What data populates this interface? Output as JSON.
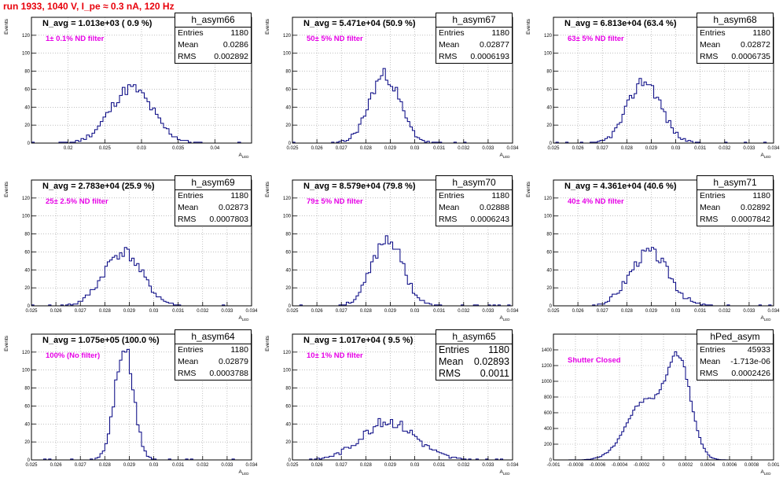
{
  "page_title": "run 1933,  1040 V, I_pe ≈ 0.3 nA, 120 Hz",
  "colors": {
    "histogram": "#000080",
    "title": "#e8000b",
    "annotation": "#e600e6",
    "grid": "#9a9a9a"
  },
  "chart_data": [
    {
      "type": "bar",
      "name": "h_asym66",
      "avg_label": "N_avg = 1.013e+03 ( 0.9 %)",
      "filter_label": "1± 0.1% ND filter",
      "stats": {
        "entries_label": "Entries",
        "entries": "1180",
        "mean_label": "Mean",
        "mean": "0.0286",
        "rms_label": "RMS",
        "rms": "0.002892"
      },
      "xlabel": "A_{LED}",
      "ylabel": "Events",
      "xlim": [
        0.015,
        0.045
      ],
      "ylim": [
        0,
        140
      ],
      "xticks": [
        0.02,
        0.025,
        0.03,
        0.035,
        0.04
      ],
      "xtick_labels": [
        "0.02",
        "0.025",
        "0.03",
        "0.035",
        "0.04"
      ],
      "yticks": [
        0,
        20,
        40,
        60,
        80,
        100,
        120
      ],
      "grid": true,
      "hist": {
        "mean": 0.0286,
        "rms": 0.002892,
        "entries": 1180,
        "bins": 80,
        "seed": 11
      }
    },
    {
      "type": "bar",
      "name": "h_asym67",
      "avg_label": "N_avg = 5.471e+04 (50.9 %)",
      "filter_label": "50± 5% ND filter",
      "stats": {
        "entries_label": "Entries",
        "entries": "1180",
        "mean_label": "Mean",
        "mean": "0.02877",
        "rms_label": "RMS",
        "rms": "0.0006193"
      },
      "xlabel": "A_{LED}",
      "ylabel": "Events",
      "xlim": [
        0.025,
        0.034
      ],
      "ylim": [
        0,
        140
      ],
      "xticks": [
        0.025,
        0.026,
        0.027,
        0.028,
        0.029,
        0.03,
        0.031,
        0.032,
        0.033,
        0.034
      ],
      "xtick_labels": [
        "0.025",
        "0.026",
        "0.027",
        "0.028",
        "0.029",
        "0.03",
        "0.031",
        "0.032",
        "0.033",
        "0.034"
      ],
      "yticks": [
        0,
        20,
        40,
        60,
        80,
        100,
        120
      ],
      "grid": true,
      "hist": {
        "mean": 0.02877,
        "rms": 0.0006193,
        "entries": 1180,
        "bins": 90,
        "seed": 23
      }
    },
    {
      "type": "bar",
      "name": "h_asym68",
      "avg_label": "N_avg = 6.813e+04 (63.4 %)",
      "filter_label": "63± 5% ND filter",
      "stats": {
        "entries_label": "Entries",
        "entries": "1180",
        "mean_label": "Mean",
        "mean": "0.02872",
        "rms_label": "RMS",
        "rms": "0.0006735"
      },
      "xlabel": "A_{LED}",
      "ylabel": "Events",
      "xlim": [
        0.025,
        0.034
      ],
      "ylim": [
        0,
        140
      ],
      "xticks": [
        0.025,
        0.026,
        0.027,
        0.028,
        0.029,
        0.03,
        0.031,
        0.032,
        0.033,
        0.034
      ],
      "xtick_labels": [
        "0.025",
        "0.026",
        "0.027",
        "0.028",
        "0.029",
        "0.03",
        "0.031",
        "0.032",
        "0.033",
        "0.034"
      ],
      "yticks": [
        0,
        20,
        40,
        60,
        80,
        100,
        120
      ],
      "grid": true,
      "hist": {
        "mean": 0.02872,
        "rms": 0.0006735,
        "entries": 1180,
        "bins": 90,
        "seed": 37
      }
    },
    {
      "type": "bar",
      "name": "h_asym69",
      "avg_label": "N_avg = 2.783e+04 (25.9 %)",
      "filter_label": "25± 2.5% ND filter",
      "stats": {
        "entries_label": "Entries",
        "entries": "1180",
        "mean_label": "Mean",
        "mean": "0.02873",
        "rms_label": "RMS",
        "rms": "0.0007803"
      },
      "xlabel": "A_{LED}",
      "ylabel": "Events",
      "xlim": [
        0.025,
        0.034
      ],
      "ylim": [
        0,
        140
      ],
      "xticks": [
        0.025,
        0.026,
        0.027,
        0.028,
        0.029,
        0.03,
        0.031,
        0.032,
        0.033,
        0.034
      ],
      "xtick_labels": [
        "0.025",
        "0.026",
        "0.027",
        "0.028",
        "0.029",
        "0.03",
        "0.031",
        "0.032",
        "0.033",
        "0.034"
      ],
      "yticks": [
        0,
        20,
        40,
        60,
        80,
        100,
        120
      ],
      "grid": true,
      "hist": {
        "mean": 0.02873,
        "rms": 0.0007803,
        "entries": 1180,
        "bins": 90,
        "seed": 41
      }
    },
    {
      "type": "bar",
      "name": "h_asym70",
      "avg_label": "N_avg = 8.579e+04 (79.8 %)",
      "filter_label": "79± 5% ND filter",
      "stats": {
        "entries_label": "Entries",
        "entries": "1180",
        "mean_label": "Mean",
        "mean": "0.02888",
        "rms_label": "RMS",
        "rms": "0.0006243"
      },
      "xlabel": "A_{LED}",
      "ylabel": "Events",
      "xlim": [
        0.025,
        0.034
      ],
      "ylim": [
        0,
        140
      ],
      "xticks": [
        0.025,
        0.026,
        0.027,
        0.028,
        0.029,
        0.03,
        0.031,
        0.032,
        0.033,
        0.034
      ],
      "xtick_labels": [
        "0.025",
        "0.026",
        "0.027",
        "0.028",
        "0.029",
        "0.03",
        "0.031",
        "0.032",
        "0.033",
        "0.034"
      ],
      "yticks": [
        0,
        20,
        40,
        60,
        80,
        100,
        120
      ],
      "grid": true,
      "hist": {
        "mean": 0.02888,
        "rms": 0.0006243,
        "entries": 1180,
        "bins": 90,
        "seed": 53
      }
    },
    {
      "type": "bar",
      "name": "h_asym71",
      "avg_label": "N_avg = 4.361e+04 (40.6 %)",
      "filter_label": "40± 4% ND filter",
      "stats": {
        "entries_label": "Entries",
        "entries": "1180",
        "mean_label": "Mean",
        "mean": "0.02892",
        "rms_label": "RMS",
        "rms": "0.0007842"
      },
      "xlabel": "A_{LED}",
      "ylabel": "Events",
      "xlim": [
        0.025,
        0.034
      ],
      "ylim": [
        0,
        140
      ],
      "xticks": [
        0.025,
        0.026,
        0.027,
        0.028,
        0.029,
        0.03,
        0.031,
        0.032,
        0.033,
        0.034
      ],
      "xtick_labels": [
        "0.025",
        "0.026",
        "0.027",
        "0.028",
        "0.029",
        "0.03",
        "0.031",
        "0.032",
        "0.033",
        "0.034"
      ],
      "yticks": [
        0,
        20,
        40,
        60,
        80,
        100,
        120
      ],
      "grid": true,
      "hist": {
        "mean": 0.02892,
        "rms": 0.0007842,
        "entries": 1180,
        "bins": 90,
        "seed": 67
      }
    },
    {
      "type": "bar",
      "name": "h_asym64",
      "avg_label": "N_avg = 1.075e+05 (100.0 %)",
      "filter_label": "100% (No filter)",
      "stats": {
        "entries_label": "Entries",
        "entries": "1180",
        "mean_label": "Mean",
        "mean": "0.02879",
        "rms_label": "RMS",
        "rms": "0.0003788"
      },
      "xlabel": "A_{LED}",
      "ylabel": "Events",
      "xlim": [
        0.025,
        0.034
      ],
      "ylim": [
        0,
        140
      ],
      "xticks": [
        0.025,
        0.026,
        0.027,
        0.028,
        0.029,
        0.03,
        0.031,
        0.032,
        0.033,
        0.034
      ],
      "xtick_labels": [
        "0.025",
        "0.026",
        "0.027",
        "0.028",
        "0.029",
        "0.03",
        "0.031",
        "0.032",
        "0.033",
        "0.034"
      ],
      "yticks": [
        0,
        20,
        40,
        60,
        80,
        100,
        120
      ],
      "grid": true,
      "hist": {
        "mean": 0.02879,
        "rms": 0.0003788,
        "entries": 1180,
        "bins": 90,
        "seed": 71
      }
    },
    {
      "type": "bar",
      "name": "h_asym65",
      "avg_label": "N_avg = 1.017e+04 ( 9.5 %)",
      "filter_label": "10± 1% ND filter",
      "stats": {
        "entries_label": "Entries",
        "entries": "1180",
        "mean_label": "Mean",
        "mean": "0.02893",
        "rms_label": "RMS",
        "rms": "0.0011"
      },
      "xlabel": "A_{LED}",
      "ylabel": "Events",
      "xlim": [
        0.025,
        0.034
      ],
      "ylim": [
        0,
        140
      ],
      "xticks": [
        0.025,
        0.026,
        0.027,
        0.028,
        0.029,
        0.03,
        0.031,
        0.032,
        0.033,
        0.034
      ],
      "xtick_labels": [
        "0.025",
        "0.026",
        "0.027",
        "0.028",
        "0.029",
        "0.03",
        "0.031",
        "0.032",
        "0.033",
        "0.034"
      ],
      "yticks": [
        0,
        20,
        40,
        60,
        80,
        100,
        120
      ],
      "grid": true,
      "big_stats": true,
      "hist": {
        "mean": 0.02893,
        "rms": 0.0011,
        "entries": 1180,
        "bins": 90,
        "seed": 83
      }
    },
    {
      "type": "bar",
      "name": "hPed_asym",
      "avg_label": "",
      "filter_label": "Shutter Closed",
      "stats": {
        "entries_label": "Entries",
        "entries": "45933",
        "mean_label": "Mean",
        "mean": "-1.713e-06",
        "rms_label": "RMS",
        "rms": "0.0002426"
      },
      "xlabel": "A_{LED}",
      "ylabel": "",
      "xlim": [
        -0.001,
        0.001
      ],
      "ylim": [
        0,
        1600
      ],
      "xticks": [
        -0.001,
        -0.0008,
        -0.0006,
        -0.0004,
        -0.0002,
        0,
        0.0002,
        0.0004,
        0.0006,
        0.0008,
        0.001
      ],
      "xtick_labels": [
        "-0.001",
        "-0.0008",
        "-0.0006",
        "-0.0004",
        "-0.0002",
        "0",
        "0.0002",
        "0.0004",
        "0.0006",
        "0.0008",
        "0.001"
      ],
      "yticks": [
        0,
        200,
        400,
        600,
        800,
        1000,
        1200,
        1400
      ],
      "grid": true,
      "hist": {
        "mean": -1.713e-06,
        "rms": 0.0002426,
        "entries": 45933,
        "bins": 100,
        "seed": 97,
        "shape": "pedestal"
      }
    }
  ]
}
